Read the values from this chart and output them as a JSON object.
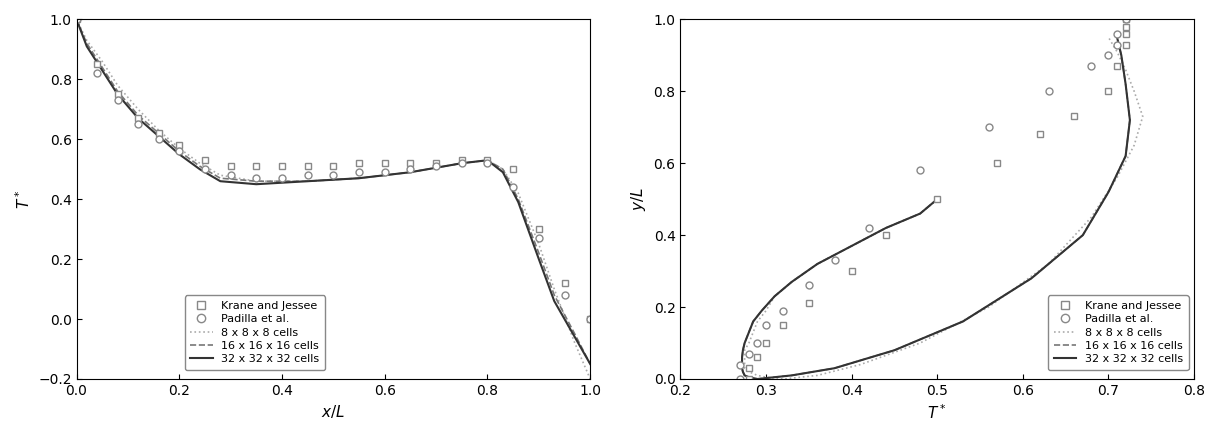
{
  "left_plot": {
    "xlabel": "$x/L$",
    "ylabel": "$T^*$",
    "xlim": [
      0.0,
      1.0
    ],
    "ylim": [
      -0.2,
      1.0
    ],
    "xticks": [
      0.0,
      0.2,
      0.4,
      0.6,
      0.8,
      1.0
    ],
    "yticks": [
      -0.2,
      0.0,
      0.2,
      0.4,
      0.6,
      0.8,
      1.0
    ],
    "krane_squares_x": [
      0.0,
      0.04,
      0.08,
      0.12,
      0.16,
      0.2,
      0.25,
      0.3,
      0.35,
      0.4,
      0.45,
      0.5,
      0.55,
      0.6,
      0.65,
      0.7,
      0.75,
      0.8,
      0.85,
      0.9,
      0.95,
      1.0
    ],
    "krane_squares_y": [
      1.0,
      0.85,
      0.75,
      0.67,
      0.62,
      0.58,
      0.53,
      0.51,
      0.51,
      0.51,
      0.51,
      0.51,
      0.52,
      0.52,
      0.52,
      0.52,
      0.53,
      0.53,
      0.5,
      0.3,
      0.12,
      0.0
    ],
    "padilla_circles_x": [
      0.0,
      0.04,
      0.08,
      0.12,
      0.16,
      0.2,
      0.25,
      0.3,
      0.35,
      0.4,
      0.45,
      0.5,
      0.55,
      0.6,
      0.65,
      0.7,
      0.75,
      0.8,
      0.85,
      0.9,
      0.95,
      1.0
    ],
    "padilla_circles_y": [
      1.0,
      0.82,
      0.73,
      0.65,
      0.6,
      0.56,
      0.5,
      0.48,
      0.47,
      0.47,
      0.48,
      0.48,
      0.49,
      0.49,
      0.5,
      0.51,
      0.52,
      0.52,
      0.44,
      0.27,
      0.08,
      0.0
    ],
    "line8_x": [
      0.0,
      0.02,
      0.05,
      0.08,
      0.12,
      0.16,
      0.2,
      0.24,
      0.28,
      0.35,
      0.45,
      0.55,
      0.65,
      0.75,
      0.8,
      0.83,
      0.86,
      0.9,
      0.93,
      0.97,
      1.0
    ],
    "line8_y": [
      1.0,
      0.93,
      0.86,
      0.78,
      0.7,
      0.63,
      0.57,
      0.52,
      0.48,
      0.46,
      0.46,
      0.47,
      0.49,
      0.52,
      0.53,
      0.5,
      0.42,
      0.25,
      0.1,
      -0.08,
      -0.2
    ],
    "line16_x": [
      0.0,
      0.02,
      0.05,
      0.08,
      0.12,
      0.16,
      0.2,
      0.24,
      0.28,
      0.35,
      0.45,
      0.55,
      0.65,
      0.75,
      0.8,
      0.83,
      0.86,
      0.9,
      0.93,
      0.97,
      1.0
    ],
    "line16_y": [
      1.0,
      0.92,
      0.84,
      0.76,
      0.68,
      0.62,
      0.56,
      0.51,
      0.47,
      0.46,
      0.46,
      0.47,
      0.49,
      0.52,
      0.53,
      0.5,
      0.4,
      0.22,
      0.08,
      -0.05,
      -0.15
    ],
    "line32_x": [
      0.0,
      0.02,
      0.05,
      0.08,
      0.12,
      0.16,
      0.2,
      0.24,
      0.28,
      0.35,
      0.45,
      0.55,
      0.65,
      0.75,
      0.8,
      0.83,
      0.86,
      0.9,
      0.93,
      0.97,
      1.0
    ],
    "line32_y": [
      1.0,
      0.91,
      0.83,
      0.75,
      0.67,
      0.61,
      0.55,
      0.5,
      0.46,
      0.45,
      0.46,
      0.47,
      0.49,
      0.52,
      0.53,
      0.49,
      0.39,
      0.2,
      0.06,
      -0.06,
      -0.15
    ]
  },
  "right_plot": {
    "xlabel": "$T^*$",
    "ylabel": "$y/L$",
    "xlim": [
      0.2,
      0.8
    ],
    "ylim": [
      0.0,
      1.0
    ],
    "xticks": [
      0.2,
      0.3,
      0.4,
      0.5,
      0.6,
      0.7,
      0.8
    ],
    "yticks": [
      0.0,
      0.2,
      0.4,
      0.6,
      0.8,
      1.0
    ],
    "krane_squares_T": [
      0.28,
      0.28,
      0.29,
      0.3,
      0.32,
      0.35,
      0.4,
      0.44,
      0.5,
      0.57,
      0.62,
      0.66,
      0.7,
      0.71,
      0.72,
      0.72,
      0.72,
      0.72
    ],
    "krane_squares_y": [
      0.0,
      0.03,
      0.06,
      0.1,
      0.15,
      0.21,
      0.3,
      0.4,
      0.5,
      0.6,
      0.68,
      0.73,
      0.8,
      0.87,
      0.93,
      0.96,
      0.98,
      1.0
    ],
    "padilla_circles_T": [
      0.27,
      0.27,
      0.28,
      0.29,
      0.3,
      0.32,
      0.35,
      0.38,
      0.42,
      0.48,
      0.56,
      0.63,
      0.68,
      0.7,
      0.71,
      0.71,
      0.72
    ],
    "padilla_circles_y": [
      0.0,
      0.04,
      0.07,
      0.1,
      0.15,
      0.19,
      0.26,
      0.33,
      0.42,
      0.58,
      0.7,
      0.8,
      0.87,
      0.9,
      0.93,
      0.96,
      1.0
    ],
    "line8_T": [
      0.5,
      0.48,
      0.44,
      0.4,
      0.36,
      0.33,
      0.31,
      0.3,
      0.29,
      0.285,
      0.28,
      0.275,
      0.275,
      0.275,
      0.275,
      0.28,
      0.29,
      0.3,
      0.32,
      0.36,
      0.41,
      0.48,
      0.56,
      0.63,
      0.68,
      0.71,
      0.73,
      0.74,
      0.73,
      0.72,
      0.71,
      0.7
    ],
    "line8_y": [
      0.5,
      0.46,
      0.42,
      0.37,
      0.32,
      0.27,
      0.23,
      0.19,
      0.16,
      0.13,
      0.1,
      0.08,
      0.06,
      0.05,
      0.03,
      0.02,
      0.01,
      0.005,
      0.0,
      0.01,
      0.04,
      0.1,
      0.2,
      0.32,
      0.45,
      0.56,
      0.65,
      0.73,
      0.8,
      0.86,
      0.91,
      0.95
    ],
    "line16_T": [
      0.5,
      0.48,
      0.44,
      0.4,
      0.36,
      0.33,
      0.31,
      0.295,
      0.285,
      0.28,
      0.275,
      0.273,
      0.272,
      0.272,
      0.272,
      0.273,
      0.275,
      0.28,
      0.29,
      0.33,
      0.38,
      0.45,
      0.53,
      0.61,
      0.67,
      0.7,
      0.72,
      0.725,
      0.72,
      0.715,
      0.71
    ],
    "line16_y": [
      0.5,
      0.46,
      0.42,
      0.37,
      0.32,
      0.27,
      0.23,
      0.19,
      0.16,
      0.13,
      0.1,
      0.08,
      0.06,
      0.04,
      0.03,
      0.02,
      0.01,
      0.005,
      0.0,
      0.01,
      0.03,
      0.08,
      0.16,
      0.28,
      0.4,
      0.52,
      0.62,
      0.72,
      0.82,
      0.9,
      0.95
    ],
    "line32_T": [
      0.5,
      0.48,
      0.44,
      0.4,
      0.36,
      0.33,
      0.31,
      0.295,
      0.285,
      0.28,
      0.275,
      0.273,
      0.272,
      0.272,
      0.272,
      0.273,
      0.275,
      0.28,
      0.29,
      0.33,
      0.38,
      0.45,
      0.53,
      0.61,
      0.67,
      0.7,
      0.72,
      0.725,
      0.72,
      0.715,
      0.71
    ],
    "line32_y": [
      0.5,
      0.46,
      0.42,
      0.37,
      0.32,
      0.27,
      0.23,
      0.19,
      0.16,
      0.13,
      0.1,
      0.08,
      0.06,
      0.04,
      0.03,
      0.02,
      0.01,
      0.005,
      0.0,
      0.01,
      0.03,
      0.08,
      0.16,
      0.28,
      0.4,
      0.52,
      0.62,
      0.72,
      0.82,
      0.9,
      0.95
    ]
  },
  "color_line8": "#aaaaaa",
  "color_line16": "#777777",
  "color_line32": "#333333",
  "marker_size": 5,
  "marker_facecolor": "white",
  "marker_edgecolor": "#888888",
  "marker_edgewidth": 1.0
}
